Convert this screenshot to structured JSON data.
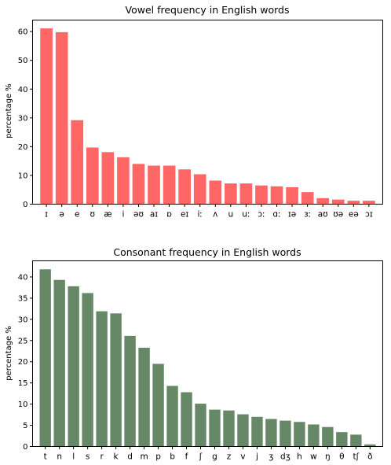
{
  "chart_data": [
    {
      "type": "bar",
      "title": "Vowel frequency in English words",
      "xlabel": "",
      "ylabel": "percentage %",
      "ylim": [
        0,
        64
      ],
      "yticks": [
        0,
        10,
        20,
        30,
        40,
        50,
        60
      ],
      "color": "#ff6666",
      "grid": false,
      "categories": [
        "ɪ",
        "ə",
        "e",
        "ʊ",
        "æ",
        "i",
        "əʊ",
        "aɪ",
        "ɒ",
        "eɪ",
        "iː",
        "ʌ",
        "u",
        "uː",
        "ɔː",
        "ɑː",
        "ɪə",
        "ɜː",
        "aʊ",
        "ʊə",
        "eə",
        "ɔɪ"
      ],
      "values": [
        61.1,
        59.8,
        29.2,
        19.7,
        18.1,
        16.3,
        14.0,
        13.4,
        13.4,
        12.1,
        10.4,
        8.2,
        7.2,
        7.2,
        6.5,
        6.2,
        5.9,
        4.2,
        2.1,
        1.6,
        1.2,
        1.2
      ]
    },
    {
      "type": "bar",
      "title": "Consonant frequency in English words",
      "xlabel": "",
      "ylabel": "percentage %",
      "ylim": [
        0,
        43.8
      ],
      "yticks": [
        0,
        5,
        10,
        15,
        20,
        25,
        30,
        35,
        40
      ],
      "color": "#668866",
      "grid": false,
      "categories": [
        "t",
        "n",
        "l",
        "s",
        "r",
        "k",
        "d",
        "m",
        "p",
        "b",
        "f",
        "ʃ",
        "g",
        "z",
        "v",
        "j",
        "ʒ",
        "dʒ",
        "h",
        "w",
        "ŋ",
        "θ",
        "tʃ",
        "ð"
      ],
      "values": [
        41.8,
        39.3,
        37.8,
        36.2,
        31.9,
        31.4,
        26.1,
        23.3,
        19.5,
        14.3,
        12.8,
        10.1,
        8.7,
        8.5,
        7.6,
        7.0,
        6.5,
        6.1,
        5.8,
        5.2,
        4.6,
        3.4,
        2.8,
        0.5
      ]
    }
  ]
}
